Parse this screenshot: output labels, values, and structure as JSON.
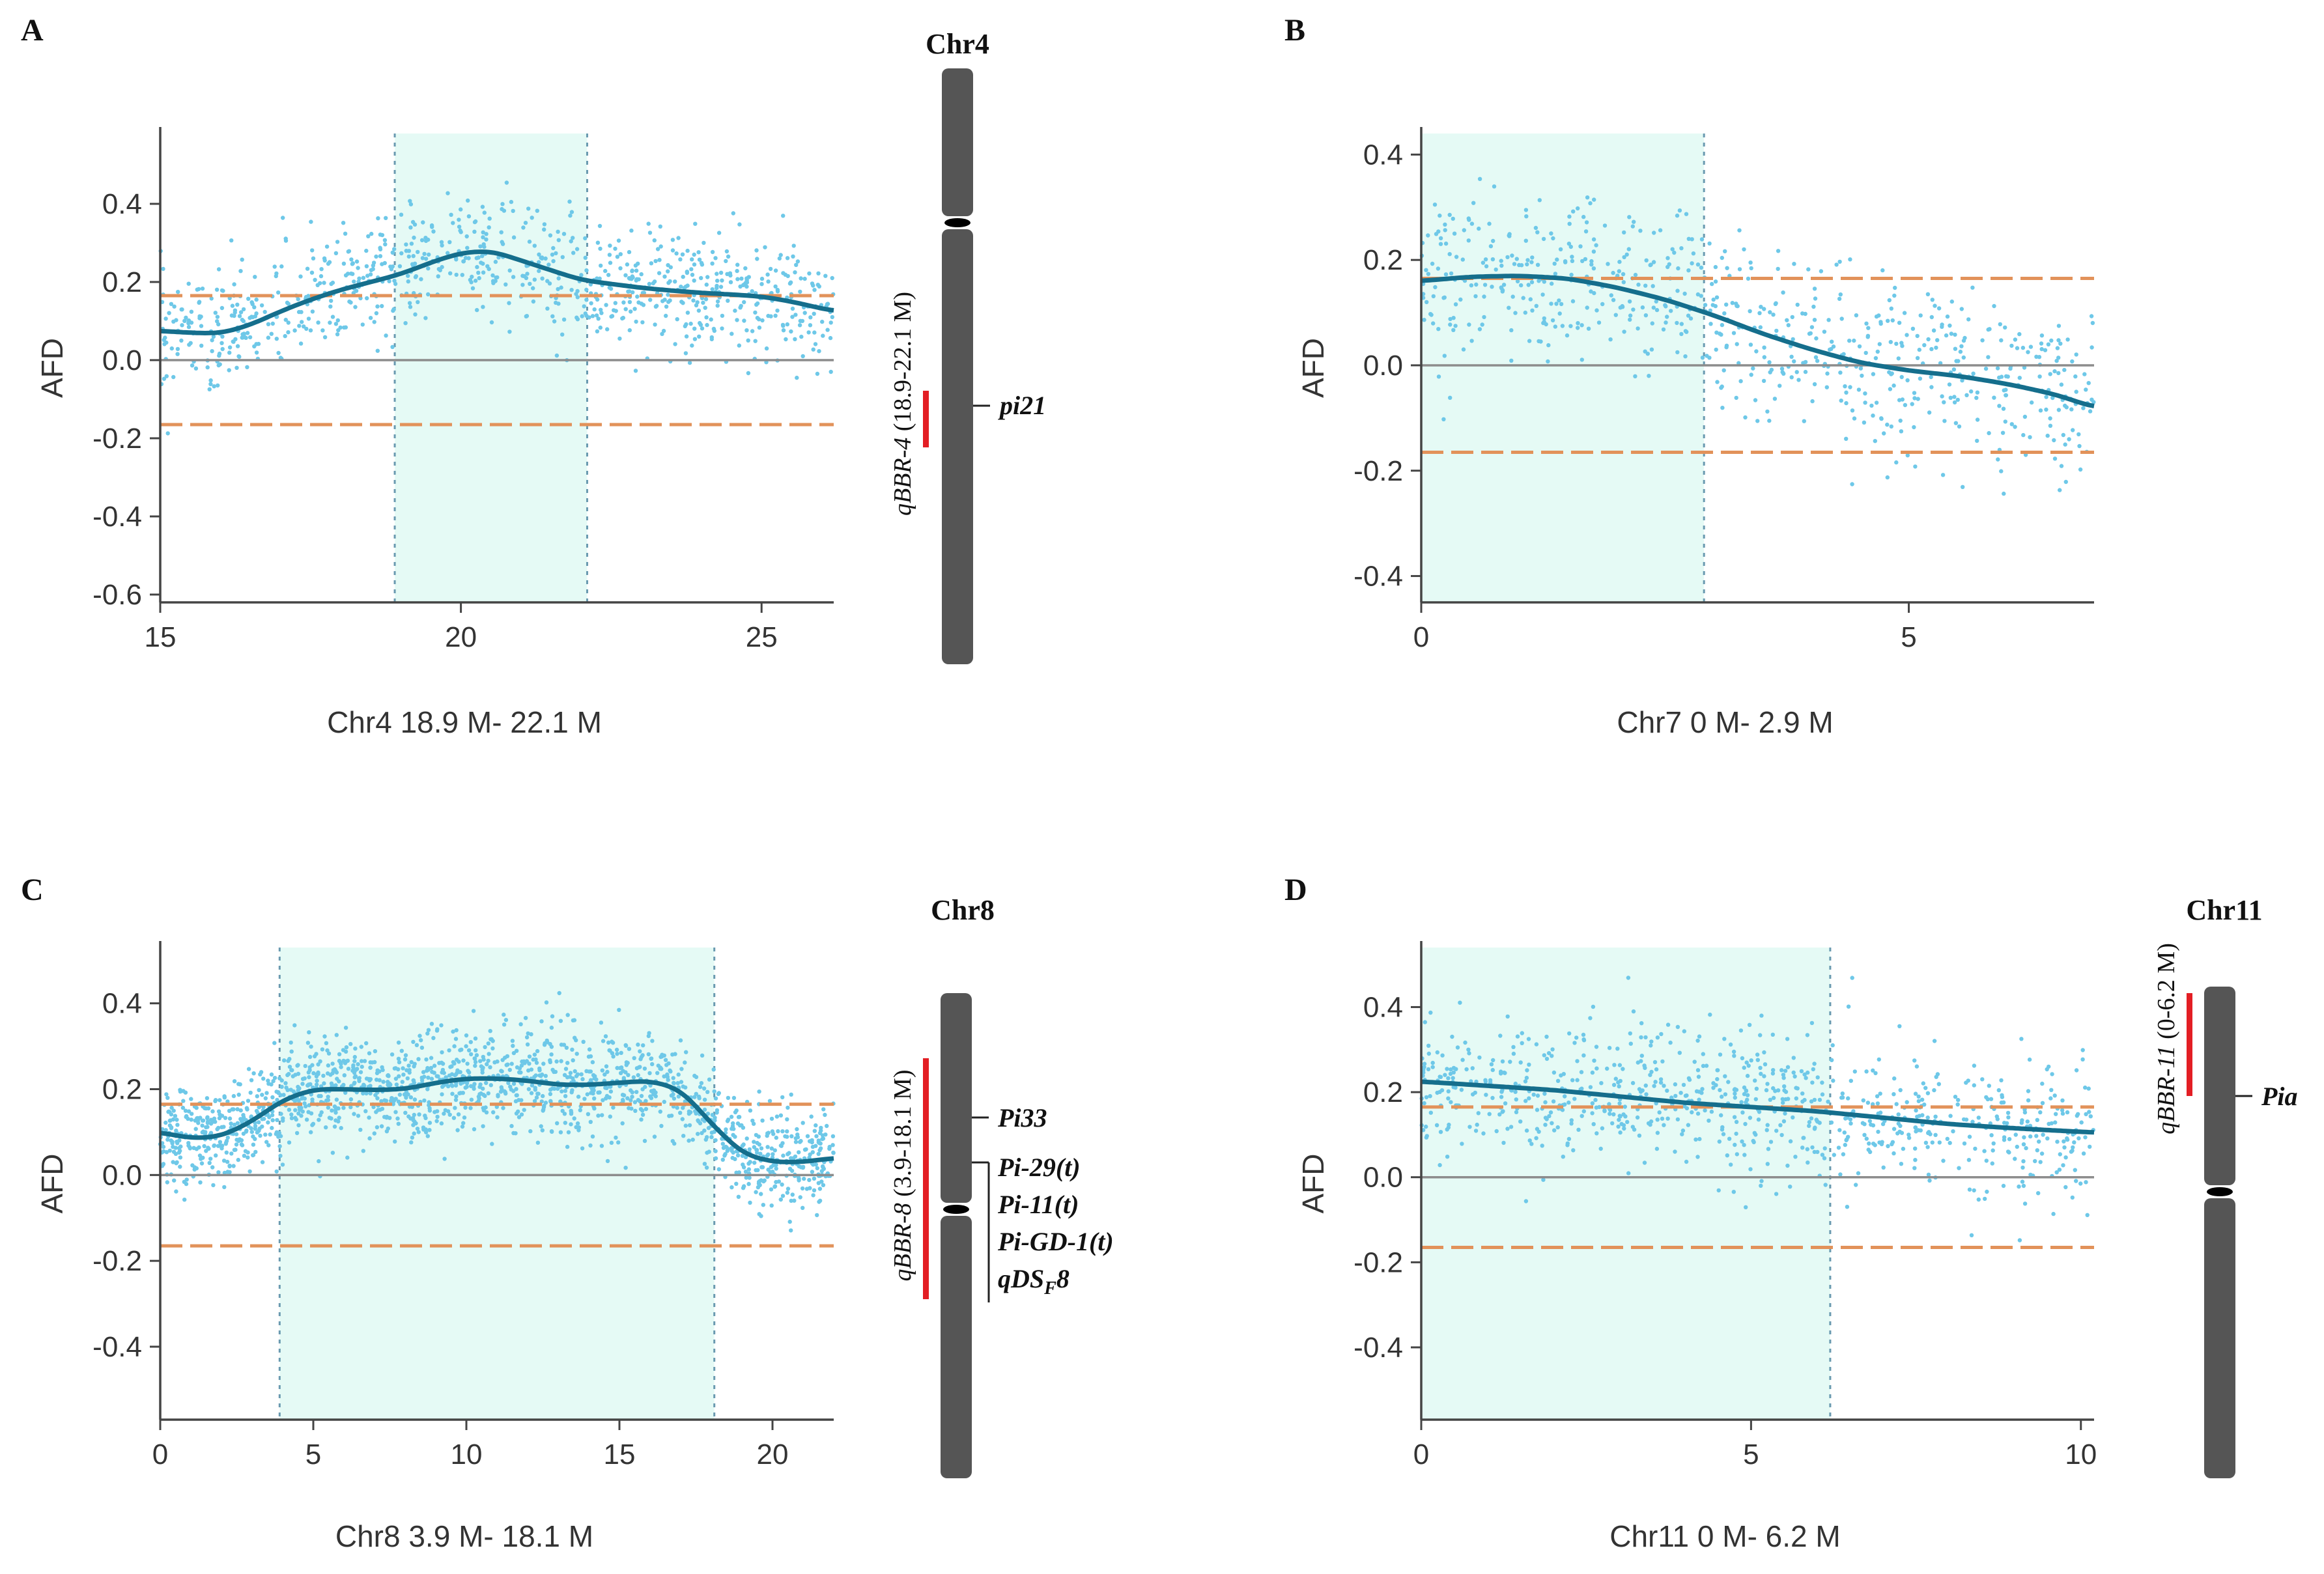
{
  "colors": {
    "point": "#6ec8e8",
    "smooth": "#156e8c",
    "threshold": "#e2925a",
    "highlight": "#e5faf5",
    "zero_line": "#8c8c8c",
    "chromosome": "#555555",
    "qtl_bar": "#e31e24",
    "axis": "#444444",
    "region_border": "#6a9ab0"
  },
  "chart_data": [
    {
      "id": "A",
      "type": "scatter",
      "panel_letter": "A",
      "title": "",
      "xlabel": "Chr4   18.9 M- 22.1 M",
      "ylabel": "AFD",
      "xlim": [
        15,
        26.2
      ],
      "ylim": [
        -0.62,
        0.58
      ],
      "xticks": [
        15,
        20,
        25
      ],
      "xtick_labels": [
        "15",
        "20",
        "25"
      ],
      "yticks": [
        -0.6,
        -0.4,
        -0.2,
        0.0,
        0.2,
        0.4
      ],
      "ytick_labels": [
        "-0.6",
        "-0.4",
        "-0.2",
        "0.0",
        "0.2",
        "0.4"
      ],
      "threshold": 0.165,
      "region": [
        18.9,
        22.1
      ],
      "smooth_x": [
        15,
        15.5,
        16,
        16.5,
        17,
        17.5,
        18,
        18.5,
        19,
        19.5,
        20,
        20.5,
        21,
        21.5,
        22,
        22.5,
        23,
        23.5,
        24,
        24.5,
        25,
        25.5,
        26.2
      ],
      "smooth_y": [
        0.075,
        0.07,
        0.068,
        0.09,
        0.125,
        0.155,
        0.18,
        0.2,
        0.22,
        0.25,
        0.275,
        0.28,
        0.255,
        0.23,
        0.205,
        0.195,
        0.185,
        0.178,
        0.172,
        0.168,
        0.163,
        0.15,
        0.125
      ],
      "scatter_noise": 0.075,
      "scatter_count": 900,
      "chromosome": {
        "label": "Chr4",
        "qtl_label_main": "qBBR-4",
        "qtl_label_range": " (18.9-22.1 M)",
        "genes": [
          "pi21"
        ]
      }
    },
    {
      "id": "B",
      "type": "scatter",
      "panel_letter": "B",
      "title": "",
      "xlabel": "Chr7    0 M- 2.9 M",
      "ylabel": "AFD",
      "xlim": [
        0,
        6.9
      ],
      "ylim": [
        -0.45,
        0.44
      ],
      "xticks": [
        0,
        5
      ],
      "xtick_labels": [
        "0",
        "5"
      ],
      "yticks": [
        -0.4,
        -0.2,
        0.0,
        0.2,
        0.4
      ],
      "ytick_labels": [
        "-0.4",
        "-0.2",
        "0.0",
        "0.2",
        "0.4"
      ],
      "threshold": 0.165,
      "region": [
        0,
        2.9
      ],
      "smooth_x": [
        0,
        0.5,
        1,
        1.5,
        2,
        2.5,
        3,
        3.5,
        4,
        4.5,
        5,
        5.5,
        6,
        6.5,
        6.9
      ],
      "smooth_y": [
        0.16,
        0.168,
        0.17,
        0.165,
        0.148,
        0.125,
        0.095,
        0.06,
        0.03,
        0.005,
        -0.01,
        -0.02,
        -0.035,
        -0.055,
        -0.08
      ],
      "scatter_noise": 0.08,
      "scatter_count": 700
    },
    {
      "id": "C",
      "type": "scatter",
      "panel_letter": "C",
      "title": "",
      "xlabel": "Chr8    3.9 M- 18.1 M",
      "ylabel": "AFD",
      "xlim": [
        0,
        22
      ],
      "ylim": [
        -0.57,
        0.53
      ],
      "xticks": [
        0,
        5,
        10,
        15,
        20
      ],
      "xtick_labels": [
        "0",
        "5",
        "10",
        "15",
        "20"
      ],
      "yticks": [
        -0.4,
        -0.2,
        0.0,
        0.2,
        0.4
      ],
      "ytick_labels": [
        "-0.4",
        "-0.2",
        "0.0",
        "0.2",
        "0.4"
      ],
      "threshold": 0.165,
      "region": [
        3.9,
        18.1
      ],
      "smooth_x": [
        0,
        1,
        2,
        3,
        4,
        5,
        6,
        7,
        8,
        9,
        10,
        11,
        12,
        13,
        14,
        15,
        16,
        17,
        18,
        19,
        20,
        21,
        22
      ],
      "smooth_y": [
        0.1,
        0.085,
        0.09,
        0.125,
        0.175,
        0.2,
        0.2,
        0.198,
        0.2,
        0.215,
        0.225,
        0.225,
        0.22,
        0.21,
        0.21,
        0.215,
        0.22,
        0.2,
        0.12,
        0.05,
        0.03,
        0.03,
        0.04
      ],
      "scatter_noise": 0.06,
      "scatter_count": 1700,
      "chromosome": {
        "label": "Chr8",
        "qtl_label_main": "qBBR-8",
        "qtl_label_range": " (3.9-18.1 M)",
        "genes": [
          "Pi33",
          "Pi-29(t)",
          "Pi-11(t)",
          "Pi-GD-1(t)",
          "qDS"
        ],
        "gene_sub": "F",
        "gene_suffix": "8"
      }
    },
    {
      "id": "D",
      "type": "scatter",
      "panel_letter": "D",
      "title": "",
      "xlabel": "Chr11    0 M- 6.2 M",
      "ylabel": "AFD",
      "xlim": [
        0,
        10.2
      ],
      "ylim": [
        -0.57,
        0.54
      ],
      "xticks": [
        0,
        5,
        10
      ],
      "xtick_labels": [
        "0",
        "5",
        "10"
      ],
      "yticks": [
        -0.4,
        -0.2,
        0.0,
        0.2,
        0.4
      ],
      "ytick_labels": [
        "-0.4",
        "-0.2",
        "0.0",
        "0.2",
        "0.4"
      ],
      "threshold": 0.165,
      "region": [
        0,
        6.2
      ],
      "smooth_x": [
        0,
        1,
        2,
        3,
        4,
        5,
        6,
        7,
        8,
        9,
        10.2
      ],
      "smooth_y": [
        0.225,
        0.215,
        0.205,
        0.19,
        0.175,
        0.165,
        0.155,
        0.14,
        0.125,
        0.115,
        0.105
      ],
      "scatter_noise": 0.085,
      "scatter_count": 850,
      "chromosome": {
        "label": "Chr11",
        "qtl_label_main": "qBBR-11",
        "qtl_label_range": " (0-6.2 M)",
        "genes": [
          "Pia"
        ]
      }
    }
  ]
}
